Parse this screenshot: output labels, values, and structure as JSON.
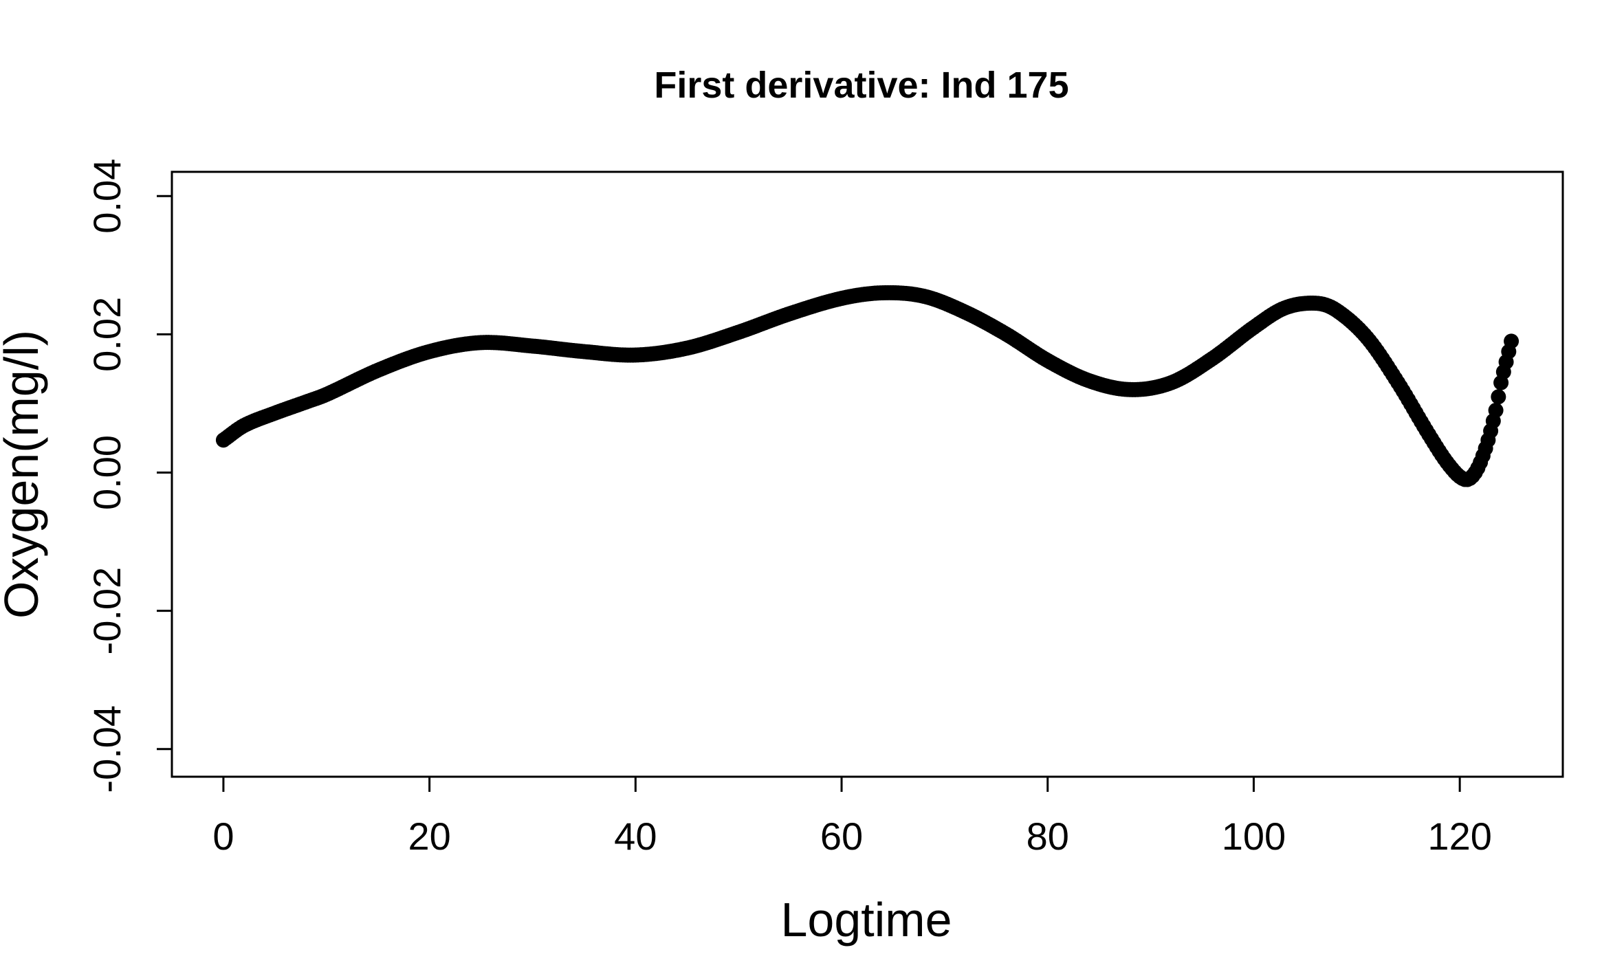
{
  "chart_data": {
    "type": "scatter",
    "title": "First derivative: Ind  175",
    "xlabel": "Logtime",
    "ylabel": "Oxygen(mg/l)",
    "xlim": [
      -5,
      130
    ],
    "ylim": [
      -0.044,
      0.0435
    ],
    "xticks": [
      0,
      20,
      40,
      60,
      80,
      100,
      120
    ],
    "xtick_labels": [
      "0",
      "20",
      "40",
      "60",
      "80",
      "100",
      "120"
    ],
    "yticks": [
      -0.04,
      -0.02,
      0.0,
      0.02,
      0.04
    ],
    "ytick_labels": [
      "-0.04",
      "-0.02",
      "0.00",
      "0.02",
      "0.04"
    ],
    "grid": false,
    "marker_color": "#000000",
    "series": [
      {
        "x": [
          0,
          2,
          5,
          8,
          10,
          15,
          20,
          25,
          30,
          35,
          40,
          45,
          50,
          55,
          60,
          64,
          68,
          72,
          76,
          80,
          84,
          88,
          92,
          96,
          100,
          103,
          106,
          108,
          111,
          114,
          117,
          119,
          120.5,
          121.5,
          122.5,
          123.5,
          124,
          124.5,
          125
        ],
        "y": [
          0.0047,
          0.0068,
          0.0086,
          0.0102,
          0.0113,
          0.0148,
          0.0175,
          0.0188,
          0.0183,
          0.0175,
          0.017,
          0.018,
          0.0203,
          0.023,
          0.0252,
          0.026,
          0.0255,
          0.0232,
          0.02,
          0.0162,
          0.0133,
          0.012,
          0.013,
          0.0165,
          0.021,
          0.0238,
          0.0245,
          0.0235,
          0.0195,
          0.013,
          0.0055,
          0.001,
          -0.001,
          0.0,
          0.0035,
          0.009,
          0.013,
          0.016,
          0.019
        ]
      }
    ]
  }
}
